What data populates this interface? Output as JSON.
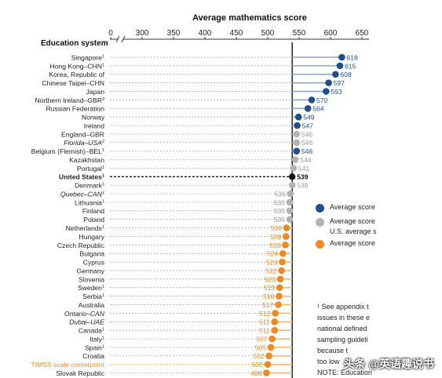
{
  "chart_data": {
    "type": "dot",
    "title": "Average mathematics score",
    "ylabel": "Education system",
    "xlim": [
      0,
      650
    ],
    "axis_break": [
      0,
      300
    ],
    "ticks": [
      0,
      300,
      350,
      400,
      450,
      500,
      550,
      600,
      650
    ],
    "reference_line": {
      "label": "United States",
      "value": 539
    },
    "rows": [
      {
        "label": "Singapore",
        "sup": "1",
        "value": 618,
        "group": "higher"
      },
      {
        "label": "Hong Kong–CHN",
        "sup": "1",
        "value": 615,
        "group": "higher"
      },
      {
        "label": "Korea, Republic of",
        "value": 608,
        "group": "higher"
      },
      {
        "label": "Chinese Taipei–CHN",
        "value": 597,
        "group": "higher"
      },
      {
        "label": "Japan",
        "value": 593,
        "group": "higher"
      },
      {
        "label": "Northern Ireland–GBR",
        "sup": "3",
        "value": 570,
        "group": "higher"
      },
      {
        "label": "Russian Federation",
        "value": 564,
        "group": "higher"
      },
      {
        "label": "Norway",
        "value": 549,
        "group": "higher"
      },
      {
        "label": "Ireland",
        "value": 547,
        "group": "higher"
      },
      {
        "label": "England–GBR",
        "value": 546,
        "group": "ns"
      },
      {
        "label": "Florida–USA",
        "sup": "2",
        "value": 546,
        "group": "ns",
        "italic": true
      },
      {
        "label": "Belgium (Flemish)–BEL",
        "sup": "1",
        "value": 546,
        "group": "higher"
      },
      {
        "label": "Kazakhstan",
        "value": 544,
        "group": "ns"
      },
      {
        "label": "Portugal",
        "sup": "1",
        "value": 541,
        "group": "ns"
      },
      {
        "label": "United States",
        "sup": "1",
        "value": 539,
        "group": "us",
        "bold": true
      },
      {
        "label": "Denmark",
        "sup": "1",
        "value": 539,
        "group": "ns"
      },
      {
        "label": "Quebec–CAN",
        "sup": "1",
        "value": 536,
        "group": "ns",
        "italic": true
      },
      {
        "label": "Lithuania",
        "sup": "1",
        "value": 535,
        "group": "ns"
      },
      {
        "label": "Finland",
        "value": 535,
        "group": "ns"
      },
      {
        "label": "Poland",
        "value": 535,
        "group": "ns"
      },
      {
        "label": "Netherlands",
        "sup": "1",
        "value": 530,
        "group": "lower"
      },
      {
        "label": "Hungary",
        "value": 529,
        "group": "lower"
      },
      {
        "label": "Czech Republic",
        "value": 528,
        "group": "lower"
      },
      {
        "label": "Bulgaria",
        "value": 524,
        "group": "lower"
      },
      {
        "label": "Cyprus",
        "value": 523,
        "group": "lower"
      },
      {
        "label": "Germany",
        "value": 522,
        "group": "lower"
      },
      {
        "label": "Slovenia",
        "value": 520,
        "group": "lower"
      },
      {
        "label": "Sweden",
        "sup": "1",
        "value": 519,
        "group": "lower"
      },
      {
        "label": "Serbia",
        "sup": "1",
        "value": 518,
        "group": "lower"
      },
      {
        "label": "Australia",
        "value": 517,
        "group": "lower"
      },
      {
        "label": "Ontario–CAN",
        "value": 512,
        "group": "lower",
        "italic": true
      },
      {
        "label": "Dubai–UAE",
        "value": 511,
        "group": "lower",
        "italic": true
      },
      {
        "label": "Canada",
        "sup": "1",
        "value": 511,
        "group": "lower"
      },
      {
        "label": "Italy",
        "sup": "1",
        "value": 507,
        "group": "lower"
      },
      {
        "label": "Spain",
        "sup": "1",
        "value": 505,
        "group": "lower"
      },
      {
        "label": "Croatia",
        "value": 502,
        "group": "lower"
      },
      {
        "label": "TIMSS scale centerpoint",
        "value": 500,
        "group": "centerpoint",
        "orange": true
      },
      {
        "label": "Slovak Republic",
        "value": 498,
        "group": "lower"
      }
    ],
    "colors": {
      "higher": "#1f4e8c",
      "ns": "#b3b3b3",
      "lower": "#ee8a1f",
      "us": "#111111",
      "line": "#999999"
    }
  },
  "legend": [
    {
      "text": "Average score",
      "color": "#1f4e8c"
    },
    {
      "text": "Average score",
      "color": "#b3b3b3"
    },
    {
      "text": "U.S. average s",
      "color": ""
    },
    {
      "text": "Average score",
      "color": "#ee8a1f"
    }
  ],
  "notes": [
    "¹ See appendix t",
    "issues in these e",
    "national defined",
    "sampling guideli",
    "because t",
    "too low",
    "NOTE: Education"
  ],
  "watermark": "头条 @英语趣说书"
}
